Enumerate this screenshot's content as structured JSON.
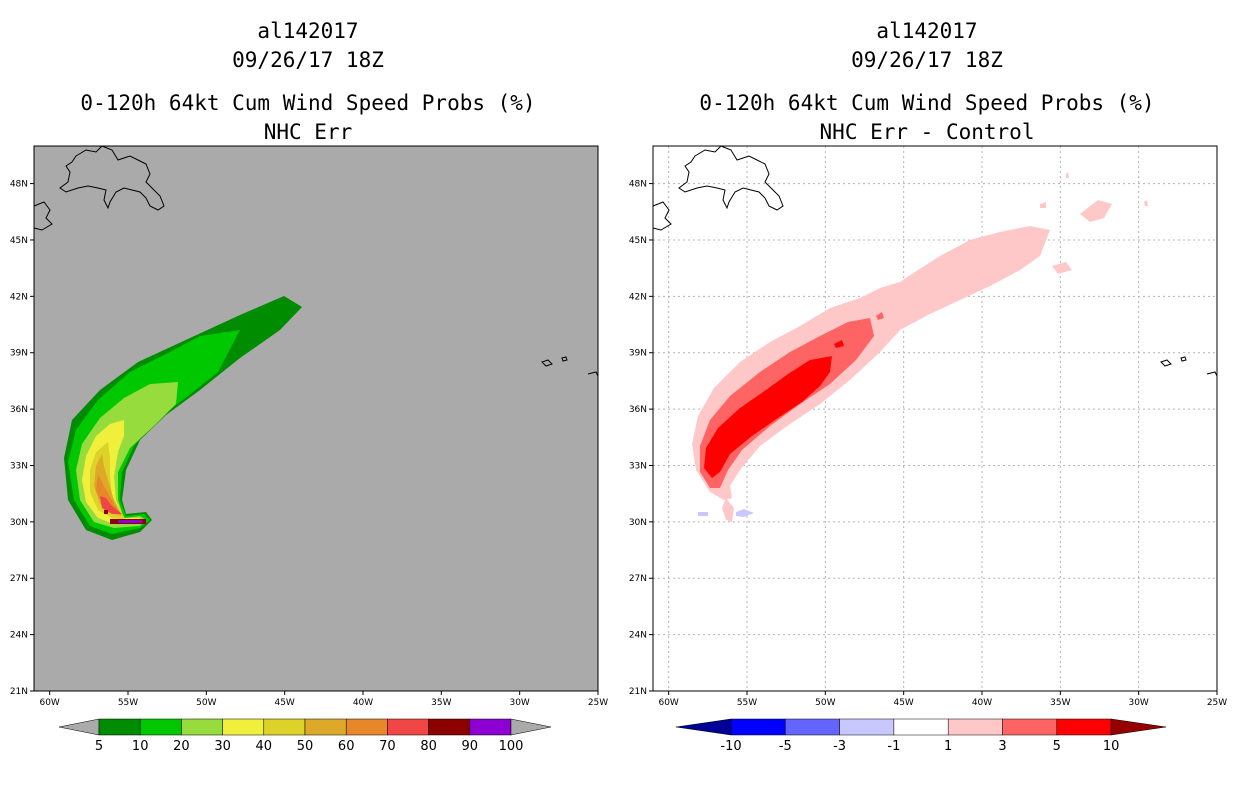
{
  "left_panel": {
    "storm_id": "al142017",
    "datetime": "09/26/17 18Z",
    "title": "0-120h 64kt Cum Wind Speed Probs (%)",
    "subtitle": "NHC Err"
  },
  "right_panel": {
    "storm_id": "al142017",
    "datetime": "09/26/17 18Z",
    "title": "0-120h 64kt Cum Wind Speed Probs (%)",
    "subtitle": "NHC Err - Control"
  },
  "lat_labels": [
    "48N",
    "45N",
    "42N",
    "39N",
    "36N",
    "33N",
    "30N",
    "27N",
    "24N",
    "21N"
  ],
  "lon_labels": [
    "60W",
    "55W",
    "50W",
    "45W",
    "40W",
    "35W",
    "30W",
    "25W"
  ],
  "colorbar_left": {
    "labels": [
      "5",
      "10",
      "20",
      "30",
      "40",
      "50",
      "60",
      "70",
      "80",
      "90",
      "100"
    ],
    "colors": [
      "#008c00",
      "#00c800",
      "#96dc3c",
      "#f0f03c",
      "#dcd228",
      "#dcaa28",
      "#e8872a",
      "#f04646",
      "#8c0000",
      "#8c00d2"
    ],
    "end_color": "#aaaaaa"
  },
  "colorbar_right": {
    "labels": [
      "-10",
      "-5",
      "-3",
      "-1",
      "1",
      "3",
      "5",
      "10"
    ],
    "colors": [
      "#0000ff",
      "#6464ff",
      "#c8c8ff",
      "#ffffff",
      "#ffc8c8",
      "#ff6464",
      "#ff0000"
    ],
    "low_color": "#000096",
    "high_color": "#960000"
  },
  "chart_data": [
    {
      "type": "heatmap",
      "title": "0-120h 64kt Cum Wind Speed Probs (%)",
      "subtitle": "NHC Err",
      "lon_range": [
        -61,
        -25
      ],
      "lat_range": [
        21,
        50
      ],
      "contour_levels": [
        5,
        10,
        20,
        30,
        40,
        50,
        60,
        70,
        80,
        90,
        100
      ],
      "grid": false
    },
    {
      "type": "heatmap",
      "title": "0-120h 64kt Cum Wind Speed Probs (%)",
      "subtitle": "NHC Err - Control",
      "lon_range": [
        -61,
        -25
      ],
      "lat_range": [
        21,
        50
      ],
      "contour_levels": [
        -10,
        -5,
        -3,
        -1,
        1,
        3,
        5,
        10
      ],
      "grid": true
    }
  ]
}
